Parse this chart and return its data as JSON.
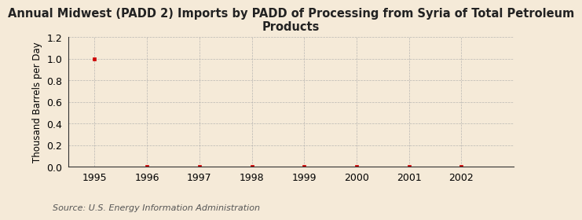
{
  "title": "Annual Midwest (PADD 2) Imports by PADD of Processing from Syria of Total Petroleum\nProducts",
  "ylabel": "Thousand Barrels per Day",
  "source": "Source: U.S. Energy Information Administration",
  "x_years": [
    1995,
    1996,
    1997,
    1998,
    1999,
    2000,
    2001,
    2002
  ],
  "y_values": [
    1.0,
    0.0,
    0.0,
    0.0,
    0.0,
    0.0,
    0.0,
    0.0
  ],
  "data_point_color": "#cc0000",
  "ylim": [
    0.0,
    1.2
  ],
  "yticks": [
    0.0,
    0.2,
    0.4,
    0.6,
    0.8,
    1.0,
    1.2
  ],
  "xlim": [
    1994.5,
    2003.0
  ],
  "background_color": "#f5ead8",
  "grid_color": "#aaaaaa",
  "title_fontsize": 10.5,
  "axis_label_fontsize": 8.5,
  "tick_fontsize": 9,
  "source_fontsize": 8,
  "marker_color": "#cc0000",
  "spine_color": "#333333"
}
